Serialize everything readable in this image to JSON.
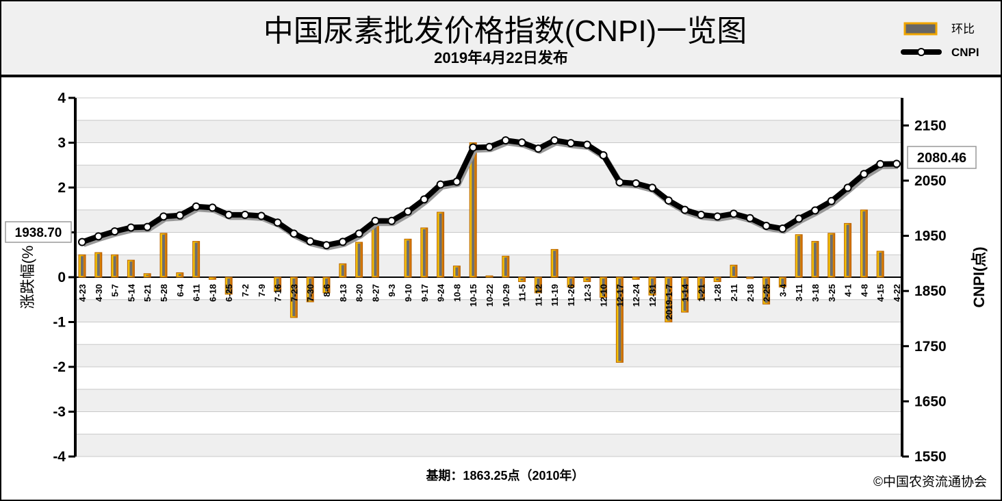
{
  "chart_data": {
    "type": "bar+line",
    "title": "中国尿素批发价格指数(CNPI)一览图",
    "subtitle": "2019年4月22日发布",
    "ylabel_left": "涨跌幅(%",
    "ylabel_right": "CNPI(点)",
    "footer_base": "基期：1863.25点（2010年）",
    "footer_source": "©中国农资流通协会",
    "legend": {
      "bar": "环比",
      "line": "CNPI"
    },
    "callouts": {
      "first": "1938.70",
      "last": "2080.46"
    },
    "ylim_left": [
      -4,
      4
    ],
    "ylim_right": [
      1550,
      2200
    ],
    "left_ticks": [
      4,
      3,
      2,
      1,
      0,
      -1,
      -2,
      -3,
      -4
    ],
    "right_ticks": [
      2150,
      2050,
      1950,
      1850,
      1750,
      1650,
      1550
    ],
    "categories": [
      "4-23",
      "4-30",
      "5-7",
      "5-14",
      "5-21",
      "5-28",
      "6-4",
      "6-11",
      "6-18",
      "6-25",
      "7-2",
      "7-9",
      "7-16",
      "7-23",
      "7-30",
      "8-6",
      "8-13",
      "8-20",
      "8-27",
      "9-3",
      "9-10",
      "9-17",
      "9-24",
      "10-8",
      "10-15",
      "10-22",
      "10-29",
      "11-5",
      "11-12",
      "11-19",
      "11-26",
      "12-3",
      "12-10",
      "12-17",
      "12-24",
      "12-31",
      "2019-1-7",
      "1-14",
      "1-21",
      "1-28",
      "2-11",
      "2-18",
      "2-25",
      "3-4",
      "3-11",
      "3-18",
      "3-25",
      "4-1",
      "4-8",
      "4-15",
      "4-22"
    ],
    "series": [
      {
        "name": "环比",
        "axis": "left",
        "values": [
          0.5,
          0.55,
          0.5,
          0.38,
          0.08,
          0.98,
          0.1,
          0.8,
          -0.05,
          -0.38,
          0.0,
          0.0,
          -0.32,
          -0.9,
          -0.55,
          -0.35,
          0.3,
          0.78,
          1.25,
          0.0,
          0.85,
          1.1,
          1.45,
          0.25,
          3.0,
          0.03,
          0.47,
          -0.1,
          -0.35,
          0.62,
          -0.22,
          -0.1,
          -0.45,
          -1.9,
          -0.05,
          -0.4,
          -1.0,
          -0.78,
          -0.5,
          -0.1,
          0.27,
          -0.02,
          -0.6,
          -0.22,
          0.95,
          0.8,
          0.98,
          1.2,
          1.5,
          0.58,
          0.0
        ]
      },
      {
        "name": "CNPI",
        "axis": "right",
        "values": [
          1938.7,
          1949,
          1958,
          1965,
          1966,
          1985,
          1987,
          2003,
          2001,
          1988,
          1988,
          1986,
          1974,
          1954,
          1940,
          1933,
          1939,
          1954,
          1977,
          1977,
          1994,
          2016,
          2043,
          2048,
          2110,
          2111,
          2123,
          2119,
          2108,
          2123,
          2118,
          2115,
          2096,
          2047,
          2045,
          2037,
          2014,
          1997,
          1988,
          1985,
          1990,
          1982,
          1968,
          1963,
          1981,
          1996,
          2013,
          2037,
          2062,
          2080,
          2080.46
        ]
      }
    ]
  }
}
